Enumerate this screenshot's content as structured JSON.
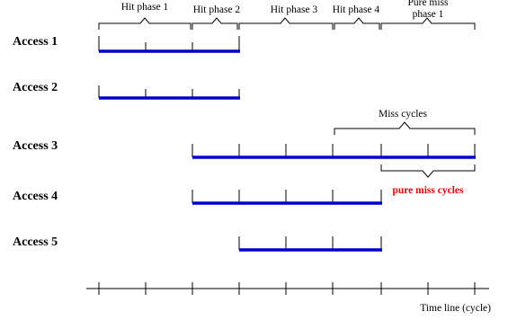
{
  "accesses": [
    {
      "label": "Access 1"
    },
    {
      "label": "Access 2"
    },
    {
      "label": "Access 3"
    },
    {
      "label": "Access 4"
    },
    {
      "label": "Access 5"
    }
  ],
  "phases": [
    {
      "label": "Hit phase 1"
    },
    {
      "label": "Hit phase 2"
    },
    {
      "label": "Hit phase 3"
    },
    {
      "label": "Hit phase 4"
    },
    {
      "label_line1": "Pure miss",
      "label_line2": "phase 1"
    }
  ],
  "annotations": {
    "miss_cycles": "Miss cycles",
    "pure_miss_cycles": "pure miss cycles"
  },
  "timeline": {
    "label": "Time line (cycle)"
  },
  "colors": {
    "bar": "#0000cc",
    "highlight": "#e00000",
    "ink": "#000000"
  }
}
